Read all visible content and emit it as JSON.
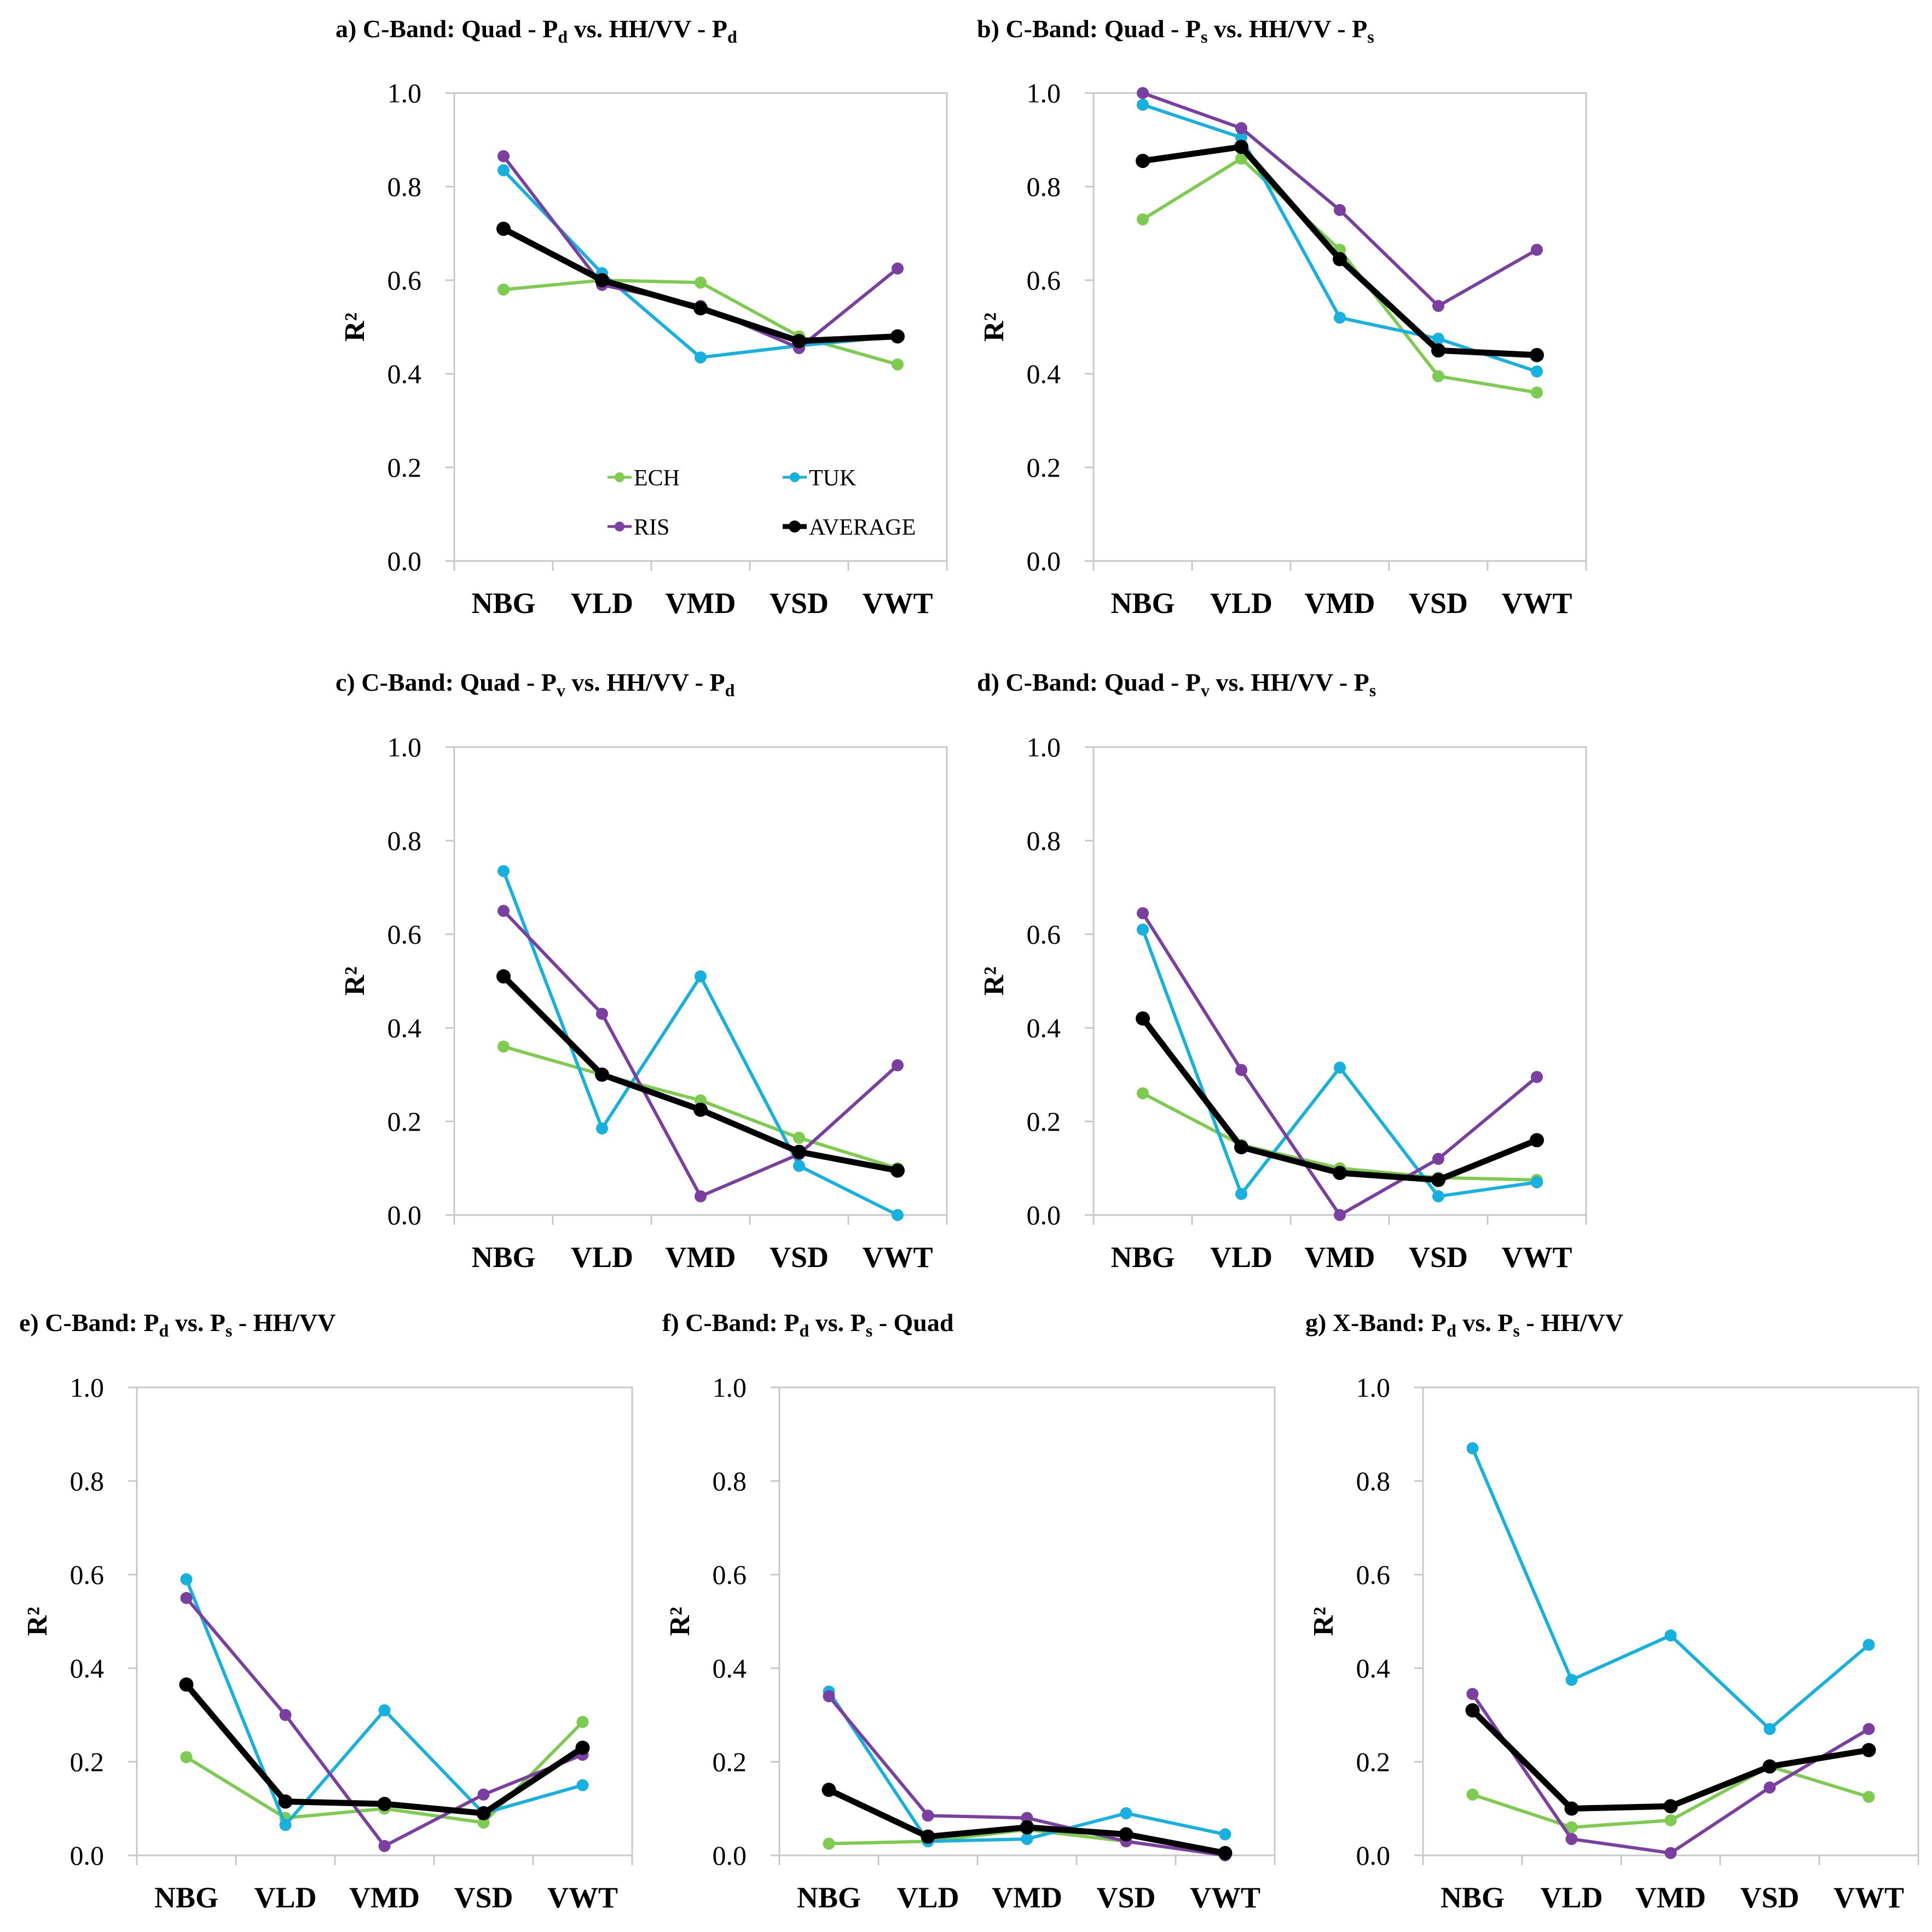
{
  "colors": {
    "ECH": "#7dcb4f",
    "TUK": "#17b1e0",
    "RIS": "#7a3fa0",
    "AVERAGE": "#000000",
    "axis": "#c8c8c8"
  },
  "legend": [
    "ECH",
    "TUK",
    "RIS",
    "AVERAGE"
  ],
  "chart_data": [
    {
      "id": "a",
      "type": "line",
      "title": {
        "prefix": "a) C-Band: Quad - P",
        "sub1": "d",
        "mid": " vs. HH/VV - P",
        "sub2": "d",
        "suffix": ""
      },
      "ylabel": "R²",
      "ylim": [
        0,
        1
      ],
      "yticks": [
        "0.0",
        "0.2",
        "0.4",
        "0.6",
        "0.8",
        "1.0"
      ],
      "categories": [
        "NBG",
        "VLD",
        "VMD",
        "VSD",
        "VWT"
      ],
      "show_legend": true,
      "series": [
        {
          "name": "ECH",
          "values": [
            0.58,
            0.6,
            0.595,
            0.48,
            0.42
          ]
        },
        {
          "name": "TUK",
          "values": [
            0.835,
            0.615,
            0.435,
            0.46,
            0.48
          ]
        },
        {
          "name": "RIS",
          "values": [
            0.865,
            0.59,
            0.545,
            0.455,
            0.625
          ]
        },
        {
          "name": "AVERAGE",
          "values": [
            0.71,
            0.6,
            0.54,
            0.47,
            0.48
          ]
        }
      ]
    },
    {
      "id": "b",
      "type": "line",
      "title": {
        "prefix": "b) C-Band: Quad - P",
        "sub1": "s",
        "mid": " vs. HH/VV - P",
        "sub2": "s",
        "suffix": ""
      },
      "ylabel": "R²",
      "ylim": [
        0,
        1
      ],
      "yticks": [
        "0.0",
        "0.2",
        "0.4",
        "0.6",
        "0.8",
        "1.0"
      ],
      "categories": [
        "NBG",
        "VLD",
        "VMD",
        "VSD",
        "VWT"
      ],
      "show_legend": false,
      "series": [
        {
          "name": "ECH",
          "values": [
            0.73,
            0.86,
            0.665,
            0.395,
            0.36
          ]
        },
        {
          "name": "TUK",
          "values": [
            0.975,
            0.905,
            0.52,
            0.475,
            0.405
          ]
        },
        {
          "name": "RIS",
          "values": [
            1.0,
            0.925,
            0.75,
            0.545,
            0.665
          ]
        },
        {
          "name": "AVERAGE",
          "values": [
            0.855,
            0.885,
            0.645,
            0.45,
            0.44
          ]
        }
      ]
    },
    {
      "id": "c",
      "type": "line",
      "title": {
        "prefix": "c) C-Band: Quad - P",
        "sub1": "v",
        "mid": " vs. HH/VV - P",
        "sub2": "d",
        "suffix": ""
      },
      "ylabel": "R²",
      "ylim": [
        0,
        1
      ],
      "yticks": [
        "0.0",
        "0.2",
        "0.4",
        "0.6",
        "0.8",
        "1.0"
      ],
      "categories": [
        "NBG",
        "VLD",
        "VMD",
        "VSD",
        "VWT"
      ],
      "show_legend": false,
      "series": [
        {
          "name": "ECH",
          "values": [
            0.36,
            0.3,
            0.245,
            0.165,
            0.1
          ]
        },
        {
          "name": "TUK",
          "values": [
            0.735,
            0.185,
            0.51,
            0.105,
            0.0
          ]
        },
        {
          "name": "RIS",
          "values": [
            0.65,
            0.43,
            0.04,
            0.13,
            0.32
          ]
        },
        {
          "name": "AVERAGE",
          "values": [
            0.51,
            0.3,
            0.225,
            0.135,
            0.095
          ]
        }
      ]
    },
    {
      "id": "d",
      "type": "line",
      "title": {
        "prefix": "d) C-Band: Quad - P",
        "sub1": "v",
        "mid": " vs. HH/VV - P",
        "sub2": "s",
        "suffix": ""
      },
      "ylabel": "R²",
      "ylim": [
        0,
        1
      ],
      "yticks": [
        "0.0",
        "0.2",
        "0.4",
        "0.6",
        "0.8",
        "1.0"
      ],
      "categories": [
        "NBG",
        "VLD",
        "VMD",
        "VSD",
        "VWT"
      ],
      "show_legend": false,
      "series": [
        {
          "name": "ECH",
          "values": [
            0.26,
            0.15,
            0.1,
            0.08,
            0.075
          ]
        },
        {
          "name": "TUK",
          "values": [
            0.61,
            0.045,
            0.315,
            0.04,
            0.07
          ]
        },
        {
          "name": "RIS",
          "values": [
            0.645,
            0.31,
            0.0,
            0.12,
            0.295
          ]
        },
        {
          "name": "AVERAGE",
          "values": [
            0.42,
            0.145,
            0.09,
            0.075,
            0.16
          ]
        }
      ]
    },
    {
      "id": "e",
      "type": "line",
      "title": {
        "prefix": "e) C-Band: P",
        "sub1": "d",
        "mid": " vs. P",
        "sub2": "s",
        "suffix": " - HH/VV"
      },
      "ylabel": "R²",
      "ylim": [
        0,
        1
      ],
      "yticks": [
        "0.0",
        "0.2",
        "0.4",
        "0.6",
        "0.8",
        "1.0"
      ],
      "categories": [
        "NBG",
        "VLD",
        "VMD",
        "VSD",
        "VWT"
      ],
      "show_legend": false,
      "series": [
        {
          "name": "ECH",
          "values": [
            0.21,
            0.08,
            0.1,
            0.07,
            0.285
          ]
        },
        {
          "name": "TUK",
          "values": [
            0.59,
            0.065,
            0.31,
            0.09,
            0.15
          ]
        },
        {
          "name": "RIS",
          "values": [
            0.55,
            0.3,
            0.02,
            0.13,
            0.215
          ]
        },
        {
          "name": "AVERAGE",
          "values": [
            0.365,
            0.115,
            0.11,
            0.09,
            0.23
          ]
        }
      ]
    },
    {
      "id": "f",
      "type": "line",
      "title": {
        "prefix": "f) C-Band: P",
        "sub1": "d",
        "mid": " vs. P",
        "sub2": "s",
        "suffix": " - Quad"
      },
      "ylabel": "R²",
      "ylim": [
        0,
        1
      ],
      "yticks": [
        "0.0",
        "0.2",
        "0.4",
        "0.6",
        "0.8",
        "1.0"
      ],
      "categories": [
        "NBG",
        "VLD",
        "VMD",
        "VSD",
        "VWT"
      ],
      "show_legend": false,
      "series": [
        {
          "name": "ECH",
          "values": [
            0.025,
            0.03,
            0.055,
            0.03,
            0.0
          ]
        },
        {
          "name": "TUK",
          "values": [
            0.35,
            0.03,
            0.035,
            0.09,
            0.045
          ]
        },
        {
          "name": "RIS",
          "values": [
            0.34,
            0.085,
            0.08,
            0.03,
            0.0
          ]
        },
        {
          "name": "AVERAGE",
          "values": [
            0.14,
            0.04,
            0.06,
            0.045,
            0.005
          ]
        }
      ]
    },
    {
      "id": "g",
      "type": "line",
      "title": {
        "prefix": "g) X-Band: P",
        "sub1": "d",
        "mid": " vs. P",
        "sub2": "s",
        "suffix": " - HH/VV"
      },
      "ylabel": "R²",
      "ylim": [
        0,
        1
      ],
      "yticks": [
        "0.0",
        "0.2",
        "0.4",
        "0.6",
        "0.8",
        "1.0"
      ],
      "categories": [
        "NBG",
        "VLD",
        "VMD",
        "VSD",
        "VWT"
      ],
      "show_legend": false,
      "series": [
        {
          "name": "ECH",
          "values": [
            0.13,
            0.06,
            0.075,
            0.19,
            0.125
          ]
        },
        {
          "name": "TUK",
          "values": [
            0.87,
            0.375,
            0.47,
            0.27,
            0.45
          ]
        },
        {
          "name": "RIS",
          "values": [
            0.345,
            0.035,
            0.005,
            0.145,
            0.27
          ]
        },
        {
          "name": "AVERAGE",
          "values": [
            0.31,
            0.1,
            0.105,
            0.19,
            0.225
          ]
        }
      ]
    }
  ]
}
